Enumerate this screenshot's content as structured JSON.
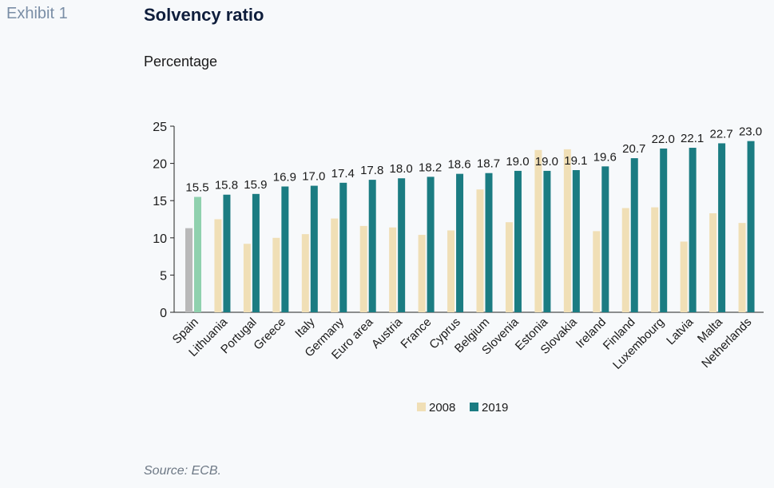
{
  "header": {
    "exhibit_label": "Exhibit 1",
    "title": "Solvency ratio",
    "subtitle": "Percentage"
  },
  "footer": {
    "source": "Source: ECB."
  },
  "colors": {
    "series_2008": "#f0dfb6",
    "series_2019": "#1b7c82",
    "highlight_2008": "#b9b9b9",
    "highlight_2019": "#8fd1ae",
    "axis": "#222222"
  },
  "chart_data": {
    "type": "bar",
    "title": "Solvency ratio",
    "ylabel": "Percentage",
    "xlabel": "",
    "ylim": [
      0,
      25
    ],
    "yticks": [
      0,
      5,
      10,
      15,
      20,
      25
    ],
    "grid": false,
    "legend_position": "bottom-center",
    "highlight_category": "Spain",
    "categories": [
      "Spain",
      "Lithuania",
      "Portugal",
      "Greece",
      "Italy",
      "Germany",
      "Euro area",
      "Austria",
      "France",
      "Cyprus",
      "Belgium",
      "Slovenia",
      "Estonia",
      "Slovakia",
      "Ireland",
      "Finland",
      "Luxembourg",
      "Latvia",
      "Malta",
      "Netherlands"
    ],
    "series": [
      {
        "name": "2008",
        "values": [
          11.3,
          12.5,
          9.2,
          10.0,
          10.5,
          12.6,
          11.6,
          11.4,
          10.4,
          11.0,
          16.5,
          12.1,
          21.8,
          21.9,
          10.9,
          14.0,
          14.1,
          9.5,
          13.3,
          12.0
        ]
      },
      {
        "name": "2019",
        "values": [
          15.5,
          15.8,
          15.9,
          16.9,
          17.0,
          17.4,
          17.8,
          18.0,
          18.2,
          18.6,
          18.7,
          19.0,
          19.0,
          19.1,
          19.6,
          20.7,
          22.0,
          22.1,
          22.7,
          23.0
        ],
        "labels": [
          "15.5",
          "15.8",
          "15.9",
          "16.9",
          "17.0",
          "17.4",
          "17.8",
          "18.0",
          "18.2",
          "18.6",
          "18.7",
          "19.0",
          "19.0",
          "19.1",
          "19.6",
          "20.7",
          "22.0",
          "22.1",
          "22.7",
          "23.0"
        ]
      }
    ]
  }
}
